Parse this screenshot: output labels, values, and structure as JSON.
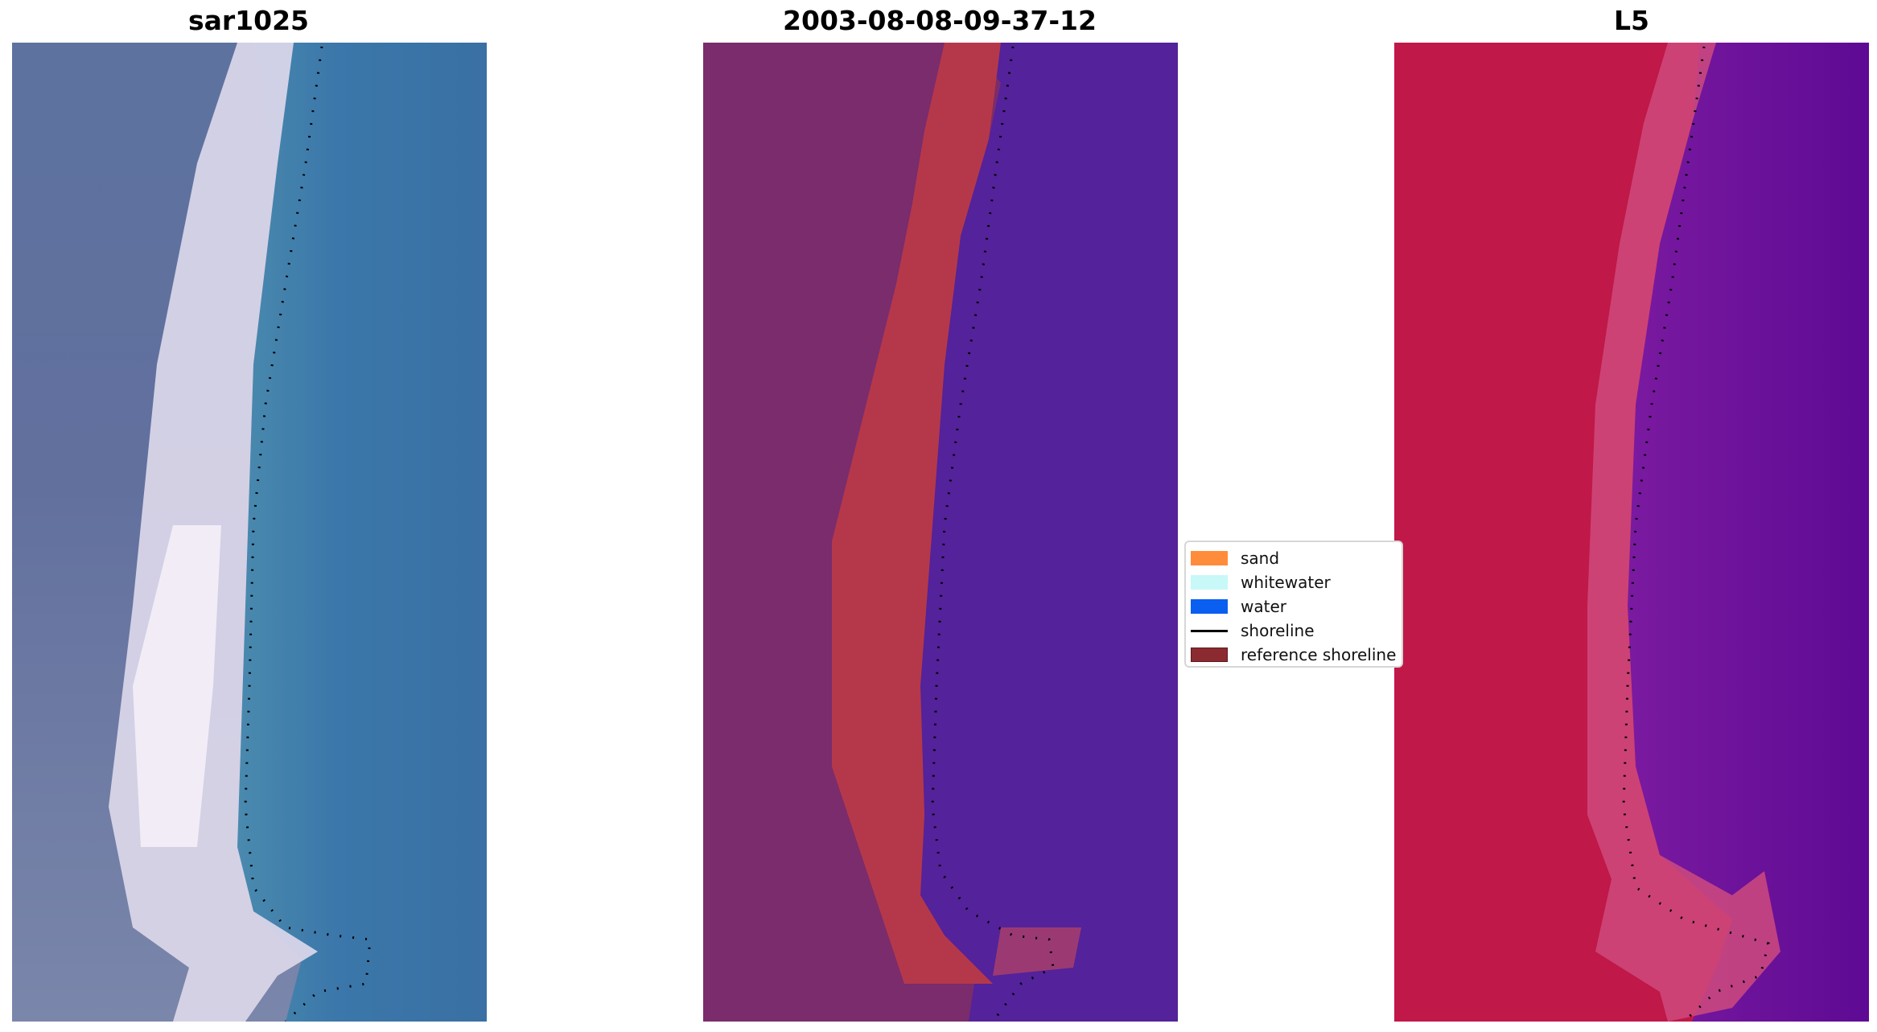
{
  "panels": [
    {
      "title": "sar1025",
      "image": "rgb-satellite-image"
    },
    {
      "title": "2003-08-08-09-37-12",
      "image": "classified-image"
    },
    {
      "title": "L5",
      "image": "index-image"
    }
  ],
  "legend": {
    "items": [
      {
        "label": "sand",
        "color": "#ff8c3a",
        "kind": "patch"
      },
      {
        "label": "whitewater",
        "color": "#c8f8f8",
        "kind": "patch"
      },
      {
        "label": "water",
        "color": "#0a5ef0",
        "kind": "patch"
      },
      {
        "label": "shoreline",
        "color": "#000000",
        "kind": "line"
      },
      {
        "label": "reference shoreline",
        "color": "#8b2a30",
        "kind": "patch"
      }
    ]
  },
  "colors": {
    "rgb_land": "#5d6f9e",
    "rgb_water": "#3a6fa6",
    "rgb_whitewater": "#eee8f4",
    "class_land": "#7a2c6c",
    "class_sand": "#b5384a",
    "class_water": "#54229a",
    "index_land": "#c01848",
    "index_beach": "#cf4a7e",
    "index_water": "#6a1298"
  }
}
